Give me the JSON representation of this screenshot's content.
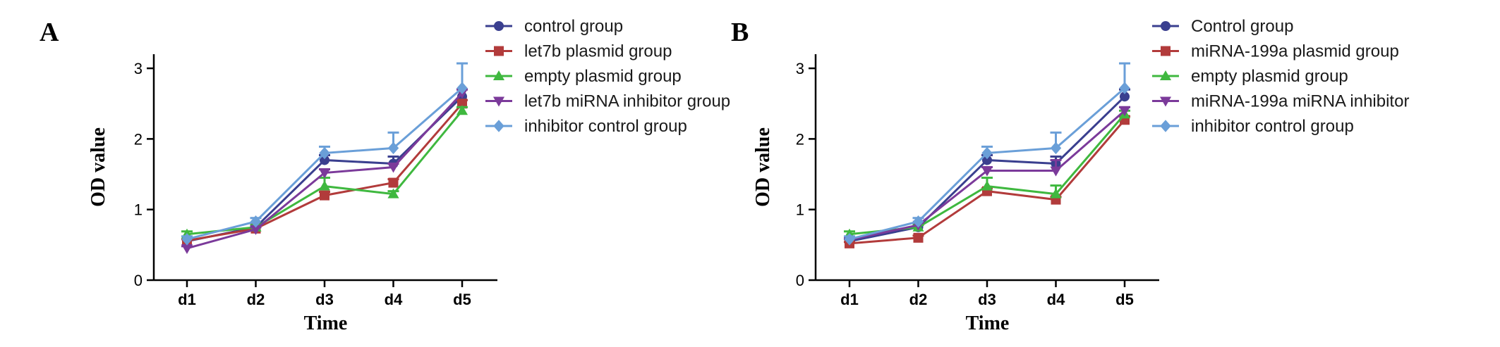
{
  "chart_data": [
    {
      "panel": "A",
      "type": "line",
      "title": "",
      "xlabel": "Time",
      "ylabel": "OD value",
      "categories": [
        "d1",
        "d2",
        "d3",
        "d4",
        "d5"
      ],
      "ylim": [
        0,
        3.2
      ],
      "yticks": [
        0,
        1,
        2,
        3
      ],
      "legend_position": "top-right",
      "series": [
        {
          "name": "control group",
          "color": "#3a3f8f",
          "marker": "circle",
          "values": [
            0.55,
            0.75,
            1.7,
            1.65,
            2.6
          ],
          "error": [
            0.03,
            0.04,
            0.07,
            0.1,
            0.1
          ]
        },
        {
          "name": "let7b plasmid group",
          "color": "#b23b3b",
          "marker": "square",
          "values": [
            0.56,
            0.73,
            1.2,
            1.38,
            2.5
          ],
          "error": [
            0.02,
            0.03,
            0.05,
            0.05,
            0.05
          ]
        },
        {
          "name": "empty plasmid group",
          "color": "#3fb83f",
          "marker": "triangle-up",
          "values": [
            0.65,
            0.75,
            1.33,
            1.22,
            2.4
          ],
          "error": [
            0.04,
            0.03,
            0.12,
            0.04,
            0.05
          ]
        },
        {
          "name": "let7b miRNA inhibitor group",
          "color": "#7b3a9a",
          "marker": "triangle-down",
          "values": [
            0.45,
            0.72,
            1.52,
            1.6,
            2.65
          ],
          "error": [
            0.03,
            0.03,
            0.05,
            0.05,
            0.05
          ]
        },
        {
          "name": "inhibitor control group",
          "color": "#6a9fd8",
          "marker": "diamond",
          "values": [
            0.58,
            0.83,
            1.8,
            1.87,
            2.72
          ],
          "error": [
            0.04,
            0.05,
            0.09,
            0.22,
            0.35
          ]
        }
      ]
    },
    {
      "panel": "B",
      "type": "line",
      "title": "",
      "xlabel": "Time",
      "ylabel": "OD value",
      "categories": [
        "d1",
        "d2",
        "d3",
        "d4",
        "d5"
      ],
      "ylim": [
        0,
        3.2
      ],
      "yticks": [
        0,
        1,
        2,
        3
      ],
      "legend_position": "top-right",
      "series": [
        {
          "name": "Control group",
          "color": "#3a3f8f",
          "marker": "circle",
          "values": [
            0.55,
            0.75,
            1.7,
            1.65,
            2.6
          ],
          "error": [
            0.03,
            0.04,
            0.07,
            0.1,
            0.1
          ]
        },
        {
          "name": "miRNA-199a plasmid group",
          "color": "#b23b3b",
          "marker": "square",
          "values": [
            0.52,
            0.6,
            1.26,
            1.14,
            2.27
          ],
          "error": [
            0.02,
            0.03,
            0.04,
            0.04,
            0.05
          ]
        },
        {
          "name": "empty plasmid group",
          "color": "#3fb83f",
          "marker": "triangle-up",
          "values": [
            0.65,
            0.75,
            1.33,
            1.22,
            2.35
          ],
          "error": [
            0.04,
            0.03,
            0.12,
            0.12,
            0.05
          ]
        },
        {
          "name": "miRNA-199a miRNA inhibitor",
          "color": "#7b3a9a",
          "marker": "triangle-down",
          "values": [
            0.57,
            0.78,
            1.55,
            1.55,
            2.4
          ],
          "error": [
            0.03,
            0.03,
            0.05,
            0.15,
            0.05
          ]
        },
        {
          "name": "inhibitor control group",
          "color": "#6a9fd8",
          "marker": "diamond",
          "values": [
            0.58,
            0.83,
            1.8,
            1.87,
            2.72
          ],
          "error": [
            0.04,
            0.05,
            0.09,
            0.22,
            0.35
          ]
        }
      ]
    }
  ]
}
